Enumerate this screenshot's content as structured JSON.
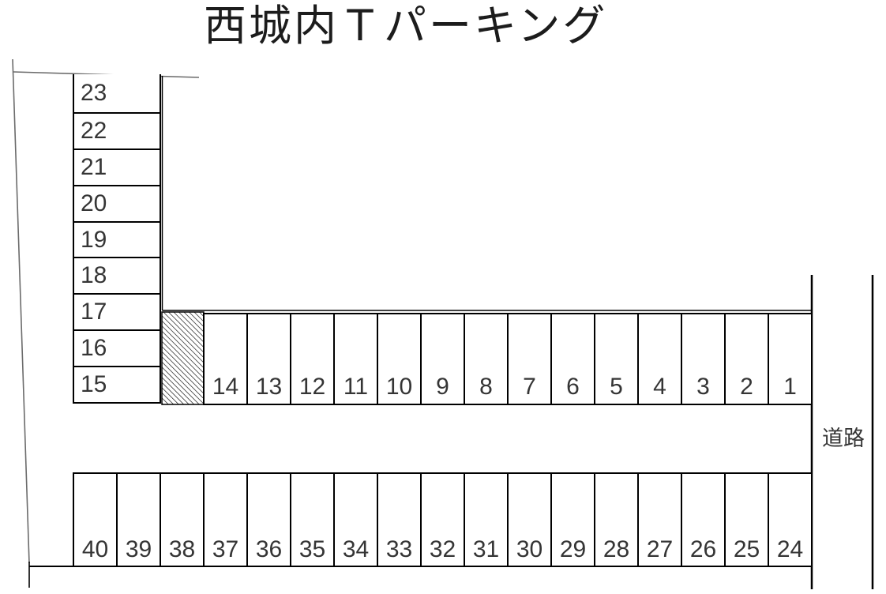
{
  "title": "西城内Ｔパーキング",
  "road": {
    "label": "道路"
  },
  "parking": {
    "left_column_spaces": [
      "23",
      "22",
      "21",
      "20",
      "19",
      "18",
      "17",
      "16",
      "15"
    ],
    "top_row_spaces": [
      "14",
      "13",
      "12",
      "11",
      "10",
      "9",
      "8",
      "7",
      "6",
      "5",
      "4",
      "3",
      "2",
      "1"
    ],
    "bottom_row_spaces": [
      "40",
      "39",
      "38",
      "37",
      "36",
      "35",
      "34",
      "33",
      "32",
      "31",
      "30",
      "29",
      "28",
      "27",
      "26",
      "25",
      "24"
    ]
  },
  "colors": {
    "line": "#000000",
    "outer_boundary": "#6b6b6b",
    "text": "#353535",
    "background": "#ffffff"
  }
}
